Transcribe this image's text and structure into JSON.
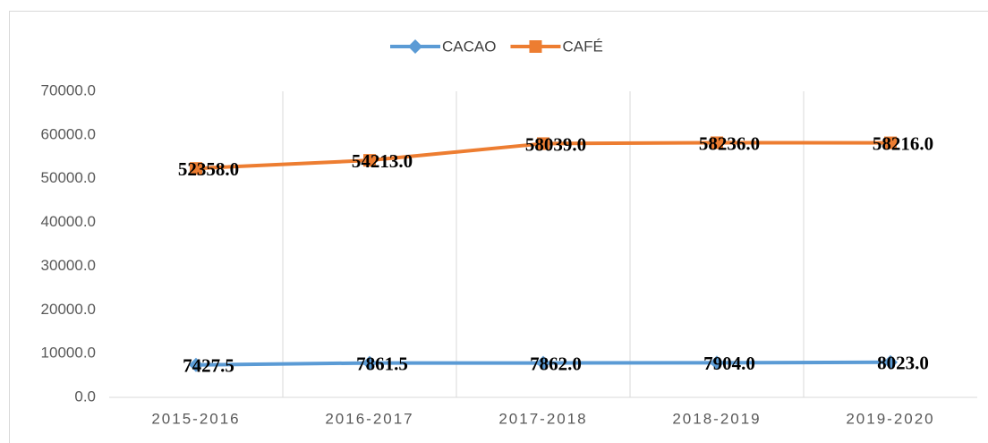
{
  "chart_data": {
    "type": "line",
    "categories": [
      "2015-2016",
      "2016-2017",
      "2017-2018",
      "2018-2019",
      "2019-2020"
    ],
    "series": [
      {
        "name": "CACAO",
        "color": "#5b9bd5",
        "marker": "diamond",
        "values": [
          7427.5,
          7861.5,
          7862,
          7904,
          8023
        ],
        "value_labels": [
          "7427.5",
          "7861.5",
          "7862.0",
          "7904.0",
          "8023.0"
        ]
      },
      {
        "name": "CAFÉ",
        "color": "#ed7d31",
        "marker": "square",
        "values": [
          52358,
          54213,
          58039,
          58236,
          58216
        ],
        "value_labels": [
          "52358.0",
          "54213.0",
          "58039.0",
          "58236.0",
          "58216.0"
        ]
      }
    ],
    "ylim": [
      0,
      70000
    ],
    "yticks": [
      {
        "value": 0,
        "label": "0.0"
      },
      {
        "value": 10000,
        "label": "10000.0"
      },
      {
        "value": 20000,
        "label": "20000.0"
      },
      {
        "value": 30000,
        "label": "30000.0"
      },
      {
        "value": 40000,
        "label": "40000.0"
      },
      {
        "value": 50000,
        "label": "50000.0"
      },
      {
        "value": 60000,
        "label": "60000.0"
      },
      {
        "value": 70000,
        "label": "70000.0"
      }
    ],
    "grid": "x",
    "legend": "top"
  }
}
